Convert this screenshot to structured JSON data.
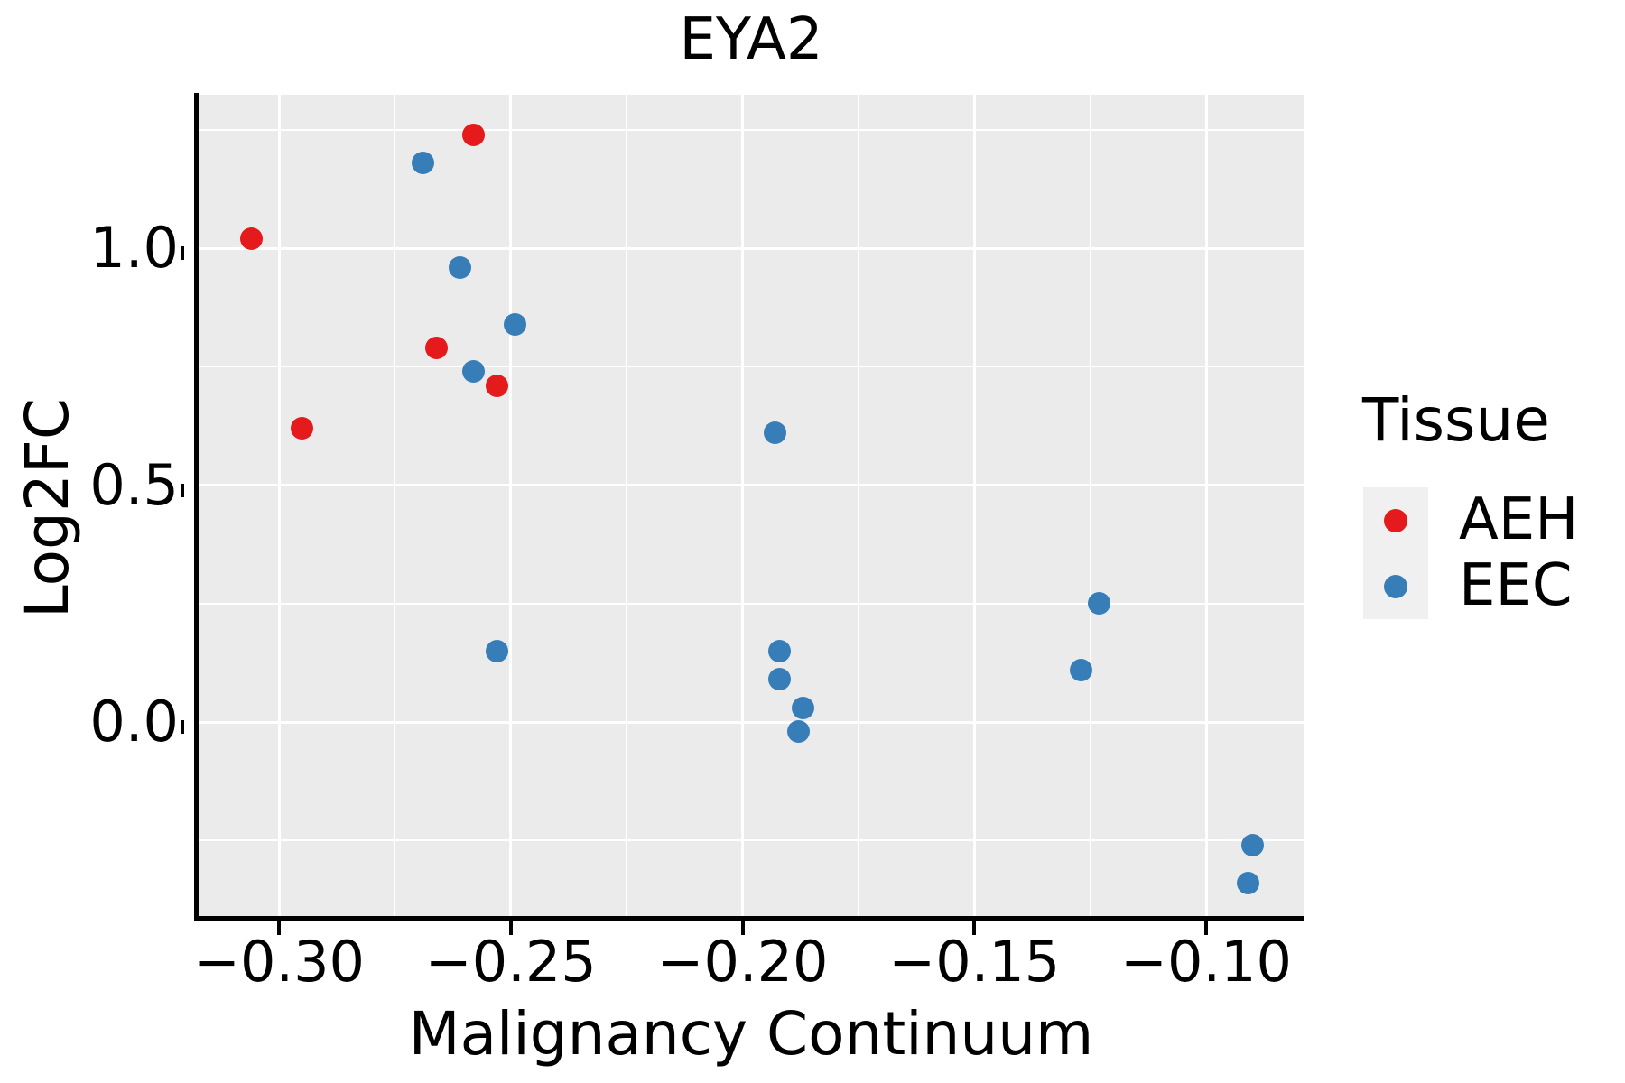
{
  "chart_data": {
    "type": "scatter",
    "title": "EYA2",
    "xlabel": "Malignancy Continuum",
    "ylabel": "Log2FC",
    "panel_bg": "#EBEBEB",
    "grid_color": "#FFFFFF",
    "axis_color": "#000000",
    "xlim": [
      -0.3172,
      -0.0786
    ],
    "ylim": [
      -0.418,
      1.336
    ],
    "grid": "major and minor white gridlines on gray panel",
    "legend_position": "right",
    "x_ticks": {
      "values": [
        -0.3,
        -0.25,
        -0.2,
        -0.15,
        -0.1
      ],
      "labels": [
        "−0.30",
        "−0.25",
        "−0.20",
        "−0.15",
        "−0.10"
      ]
    },
    "y_ticks": {
      "values": [
        0.0,
        0.5,
        1.0
      ],
      "labels": [
        "0.0",
        "0.5",
        "1.0"
      ]
    },
    "x_minor_ticks": [
      -0.275,
      -0.225,
      -0.175,
      -0.125
    ],
    "y_minor_ticks": [
      1.25,
      0.75,
      0.25,
      -0.25
    ],
    "legend": {
      "title": "Tissue",
      "entries": [
        {
          "label": "AEH",
          "color": "#E41A1C"
        },
        {
          "label": "EEC",
          "color": "#377EB8"
        }
      ]
    },
    "series": [
      {
        "name": "EEC",
        "color": "#377EB8",
        "points": [
          [
            -0.269,
            1.18
          ],
          [
            -0.261,
            0.96
          ],
          [
            -0.249,
            0.84
          ],
          [
            -0.258,
            0.74
          ],
          [
            -0.253,
            0.15
          ],
          [
            -0.193,
            0.61
          ],
          [
            -0.192,
            0.15
          ],
          [
            -0.192,
            0.09
          ],
          [
            -0.187,
            0.03
          ],
          [
            -0.188,
            -0.02
          ],
          [
            -0.123,
            0.25
          ],
          [
            -0.127,
            0.11
          ],
          [
            -0.09,
            -0.26
          ],
          [
            -0.091,
            -0.34
          ]
        ]
      },
      {
        "name": "AEH",
        "color": "#E41A1C",
        "points": [
          [
            -0.306,
            1.02
          ],
          [
            -0.295,
            0.62
          ],
          [
            -0.266,
            0.79
          ],
          [
            -0.258,
            1.24
          ],
          [
            -0.253,
            0.71
          ]
        ]
      }
    ]
  }
}
